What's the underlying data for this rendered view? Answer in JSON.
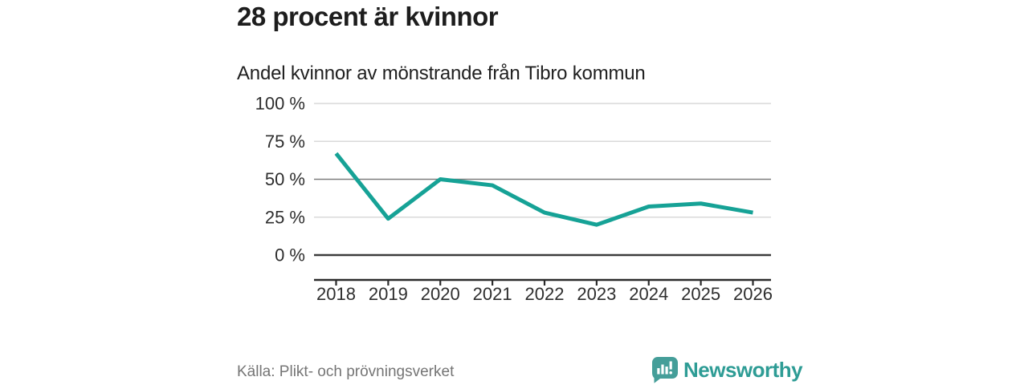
{
  "header": {
    "title": "28 procent är kvinnor",
    "subtitle": "Andel kvinnor av mönstrande från Tibro kommun"
  },
  "chart_data": {
    "type": "line",
    "title": "Andel kvinnor av mönstrande från Tibro kommun",
    "categories": [
      "2018",
      "2019",
      "2020",
      "2021",
      "2022",
      "2023",
      "2024",
      "2025",
      "2026"
    ],
    "values": [
      67,
      24,
      50,
      46,
      28,
      20,
      32,
      34,
      28
    ],
    "series_name": "Andel kvinnor (%)",
    "xlabel": "",
    "ylabel": "",
    "ylim": [
      0,
      100
    ],
    "grid": true,
    "legend": "none",
    "yticks": [
      {
        "value": 0,
        "label": "0 %",
        "emphasis": "strong"
      },
      {
        "value": 25,
        "label": "25 %",
        "emphasis": "light"
      },
      {
        "value": 50,
        "label": "50 %",
        "emphasis": "medium"
      },
      {
        "value": 75,
        "label": "75 %",
        "emphasis": "light"
      },
      {
        "value": 100,
        "label": "100 %",
        "emphasis": "light"
      }
    ],
    "line_color": "#16a296"
  },
  "footer": {
    "source": "Källa: Plikt- och prövningsverket",
    "brand": "Newsworthy"
  },
  "colors": {
    "line": "#16a296",
    "grid_light": "#d9d9d9",
    "grid_medium": "#7d7d7d",
    "grid_strong": "#3c3c3c",
    "axis": "#2b2b2b",
    "logo_bubble": "#459e99",
    "wordmark": "#2e9c95"
  }
}
